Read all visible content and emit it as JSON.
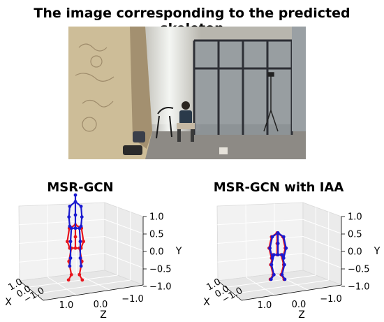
{
  "figure": {
    "title": "The image corresponding to the predicted skeleton"
  },
  "photo": {
    "colors": {
      "wall_stone": "#cdbd98",
      "wall_dark": "#a39070",
      "glass_frame": "#2d2f35",
      "glass_fill": "#8e969c",
      "floor": "#8d8a85",
      "sky_light": "#f4f6f3",
      "person_shirt": "#2a3a4a"
    }
  },
  "chart_data": [
    {
      "type": "scatter3d",
      "title": "MSR-GCN",
      "xlabel": "X",
      "ylabel": "Y",
      "zlabel": "Z",
      "x_ticks": [
        "1.0",
        "0.0",
        "−1.0"
      ],
      "y_ticks": [
        "1.0",
        "0.5",
        "0.0",
        "−0.5",
        "−1.0"
      ],
      "z_ticks": [
        "1.0",
        "0.0",
        "−1.0"
      ],
      "xlim": [
        -1.0,
        1.0
      ],
      "ylim": [
        -1.0,
        1.0
      ],
      "zlim": [
        -1.0,
        1.0
      ],
      "grid": true,
      "series": [
        {
          "color": "#e8141c",
          "joints": [
            [
              0,
              0.05,
              0
            ],
            [
              0,
              0.22,
              0
            ],
            [
              0,
              0.4,
              0
            ],
            [
              0.1,
              0.05,
              0
            ],
            [
              -0.1,
              0.05,
              0
            ],
            [
              0.16,
              -0.15,
              0
            ],
            [
              -0.16,
              -0.15,
              0
            ],
            [
              0.1,
              -0.35,
              0
            ],
            [
              -0.1,
              -0.35,
              0
            ],
            [
              0.17,
              -0.43,
              0
            ],
            [
              -0.17,
              -0.43,
              0
            ],
            [
              0.15,
              0.35,
              0
            ],
            [
              -0.15,
              0.35,
              0
            ],
            [
              0.2,
              0.15,
              0
            ],
            [
              -0.2,
              0.15,
              0
            ],
            [
              0.14,
              0.05,
              0
            ],
            [
              -0.14,
              0.05,
              0
            ]
          ],
          "bones": [
            [
              0,
              1
            ],
            [
              1,
              2
            ],
            [
              0,
              3
            ],
            [
              0,
              4
            ],
            [
              3,
              5
            ],
            [
              4,
              6
            ],
            [
              5,
              7
            ],
            [
              6,
              8
            ],
            [
              7,
              9
            ],
            [
              8,
              10
            ],
            [
              2,
              11
            ],
            [
              2,
              12
            ],
            [
              11,
              13
            ],
            [
              12,
              14
            ],
            [
              13,
              15
            ],
            [
              14,
              16
            ]
          ]
        },
        {
          "color": "#1a1ad0",
          "joints": [
            [
              0,
              0.35,
              0
            ],
            [
              0,
              0.55,
              0
            ],
            [
              0,
              0.75,
              0
            ],
            [
              0,
              0.85,
              0
            ],
            [
              0.1,
              0.35,
              0
            ],
            [
              -0.1,
              0.35,
              0
            ],
            [
              0.12,
              0.15,
              0
            ],
            [
              -0.12,
              0.15,
              0
            ],
            [
              0.12,
              -0.1,
              0
            ],
            [
              -0.12,
              -0.1,
              0
            ],
            [
              0.14,
              -0.22,
              0
            ],
            [
              -0.14,
              -0.22,
              0
            ],
            [
              0.14,
              0.68,
              0
            ],
            [
              -0.14,
              0.68,
              0
            ],
            [
              0.16,
              0.52,
              0
            ],
            [
              -0.16,
              0.52,
              0
            ],
            [
              0.14,
              0.38,
              0
            ],
            [
              -0.14,
              0.38,
              0
            ]
          ],
          "bones": [
            [
              0,
              1
            ],
            [
              1,
              2
            ],
            [
              2,
              3
            ],
            [
              0,
              4
            ],
            [
              0,
              5
            ],
            [
              4,
              6
            ],
            [
              5,
              7
            ],
            [
              6,
              8
            ],
            [
              7,
              9
            ],
            [
              8,
              10
            ],
            [
              9,
              11
            ],
            [
              2,
              12
            ],
            [
              2,
              13
            ],
            [
              12,
              14
            ],
            [
              13,
              15
            ],
            [
              14,
              16
            ],
            [
              15,
              17
            ]
          ]
        }
      ]
    },
    {
      "type": "scatter3d",
      "title": "MSR-GCN with IAA",
      "xlabel": "X",
      "ylabel": "Y",
      "zlabel": "Z",
      "x_ticks": [
        "1.0",
        "0.0",
        "−1.0"
      ],
      "y_ticks": [
        "1.0",
        "0.5",
        "0.0",
        "−0.5",
        "−1.0"
      ],
      "z_ticks": [
        "1.0",
        "0.0",
        "−1.0"
      ],
      "xlim": [
        -1.0,
        1.0
      ],
      "ylim": [
        -1.0,
        1.0
      ],
      "zlim": [
        -1.0,
        1.0
      ],
      "grid": true,
      "series": [
        {
          "color": "#e8141c",
          "joints": [
            [
              0,
              -0.05,
              0
            ],
            [
              0,
              0.12,
              0
            ],
            [
              0,
              0.28,
              0
            ],
            [
              0.1,
              -0.05,
              0
            ],
            [
              -0.1,
              -0.05,
              0
            ],
            [
              0.16,
              -0.2,
              0
            ],
            [
              -0.16,
              -0.2,
              0
            ],
            [
              0.1,
              -0.35,
              0
            ],
            [
              -0.1,
              -0.35,
              0
            ],
            [
              0.17,
              -0.42,
              0
            ],
            [
              -0.17,
              -0.42,
              0
            ],
            [
              0.14,
              0.22,
              0
            ],
            [
              -0.14,
              0.22,
              0
            ],
            [
              0.2,
              0.05,
              0
            ],
            [
              -0.2,
              0.05,
              0
            ],
            [
              0.14,
              -0.1,
              0
            ],
            [
              -0.14,
              -0.1,
              0
            ]
          ],
          "bones": [
            [
              0,
              1
            ],
            [
              1,
              2
            ],
            [
              0,
              3
            ],
            [
              0,
              4
            ],
            [
              3,
              5
            ],
            [
              4,
              6
            ],
            [
              5,
              7
            ],
            [
              6,
              8
            ],
            [
              7,
              9
            ],
            [
              8,
              10
            ],
            [
              2,
              11
            ],
            [
              2,
              12
            ],
            [
              11,
              13
            ],
            [
              12,
              14
            ],
            [
              13,
              15
            ],
            [
              14,
              16
            ]
          ]
        },
        {
          "color": "#1a1ad0",
          "joints": [
            [
              0.02,
              -0.05,
              0
            ],
            [
              0.02,
              0.12,
              0
            ],
            [
              0.02,
              0.28,
              0
            ],
            [
              0.12,
              -0.05,
              0
            ],
            [
              -0.08,
              -0.05,
              0
            ],
            [
              0.18,
              -0.2,
              0
            ],
            [
              -0.14,
              -0.2,
              0
            ],
            [
              0.12,
              -0.35,
              0
            ],
            [
              -0.08,
              -0.35,
              0
            ],
            [
              0.19,
              -0.42,
              0
            ],
            [
              -0.15,
              -0.42,
              0
            ],
            [
              0.16,
              0.22,
              0
            ],
            [
              -0.12,
              0.22,
              0
            ],
            [
              0.22,
              0.05,
              0
            ],
            [
              -0.18,
              0.05,
              0
            ],
            [
              0.16,
              -0.1,
              0
            ],
            [
              -0.12,
              -0.1,
              0
            ]
          ],
          "bones": [
            [
              0,
              1
            ],
            [
              1,
              2
            ],
            [
              0,
              3
            ],
            [
              0,
              4
            ],
            [
              3,
              5
            ],
            [
              4,
              6
            ],
            [
              5,
              7
            ],
            [
              6,
              8
            ],
            [
              7,
              9
            ],
            [
              8,
              10
            ],
            [
              2,
              11
            ],
            [
              2,
              12
            ],
            [
              11,
              13
            ],
            [
              12,
              14
            ],
            [
              13,
              15
            ],
            [
              14,
              16
            ]
          ]
        }
      ]
    }
  ]
}
